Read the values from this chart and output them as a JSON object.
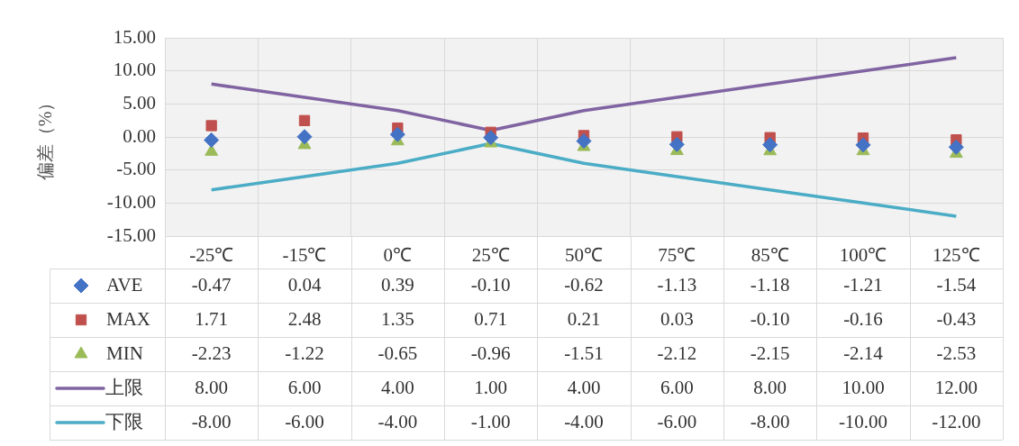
{
  "chart_data": {
    "type": "scatter",
    "ylabel": "偏差（%）",
    "categories": [
      "-25℃",
      "-15℃",
      "0℃",
      "25℃",
      "50℃",
      "75℃",
      "85℃",
      "100℃",
      "125℃"
    ],
    "ylim": [
      -15,
      15
    ],
    "yticks": [
      {
        "value": -15,
        "label": "-15.00"
      },
      {
        "value": -10,
        "label": "-10.00"
      },
      {
        "value": -5,
        "label": "-5.00"
      },
      {
        "value": 0,
        "label": "0.00"
      },
      {
        "value": 5,
        "label": "5.00"
      },
      {
        "value": 10,
        "label": "10.00"
      },
      {
        "value": 15,
        "label": "15.00"
      }
    ],
    "grid": true,
    "legend": "bottom",
    "series": [
      {
        "name": "AVE",
        "marker": "diamond",
        "color": "#4472c4",
        "values": [
          -0.47,
          0.04,
          0.39,
          -0.1,
          -0.62,
          -1.13,
          -1.18,
          -1.21,
          -1.54
        ],
        "value_labels": [
          "-0.47",
          "0.04",
          "0.39",
          "-0.10",
          "-0.62",
          "-1.13",
          "-1.18",
          "-1.21",
          "-1.54"
        ]
      },
      {
        "name": "MAX",
        "marker": "square",
        "color": "#c0504d",
        "values": [
          1.71,
          2.48,
          1.35,
          0.71,
          0.21,
          0.03,
          -0.1,
          -0.16,
          -0.43
        ],
        "value_labels": [
          "1.71",
          "2.48",
          "1.35",
          "0.71",
          "0.21",
          "0.03",
          "-0.10",
          "-0.16",
          "-0.43"
        ]
      },
      {
        "name": "MIN",
        "marker": "triangle",
        "color": "#9bbb59",
        "values": [
          -2.23,
          -1.22,
          -0.65,
          -0.96,
          -1.51,
          -2.12,
          -2.15,
          -2.14,
          -2.53
        ],
        "value_labels": [
          "-2.23",
          "-1.22",
          "-0.65",
          "-0.96",
          "-1.51",
          "-2.12",
          "-2.15",
          "-2.14",
          "-2.53"
        ]
      },
      {
        "name": "上限",
        "type": "line",
        "marker": "none",
        "color": "#8064a2",
        "values": [
          8,
          6,
          4,
          1,
          4,
          6,
          8,
          10,
          12
        ],
        "value_labels": [
          "8.00",
          "6.00",
          "4.00",
          "1.00",
          "4.00",
          "6.00",
          "8.00",
          "10.00",
          "12.00"
        ]
      },
      {
        "name": "下限",
        "type": "line",
        "marker": "none",
        "color": "#4bacc6",
        "values": [
          -8,
          -6,
          -4,
          -1,
          -4,
          -6,
          -8,
          -10,
          -12
        ],
        "value_labels": [
          "-8.00",
          "-6.00",
          "-4.00",
          "-1.00",
          "-4.00",
          "-6.00",
          "-8.00",
          "-10.00",
          "-12.00"
        ]
      }
    ]
  }
}
